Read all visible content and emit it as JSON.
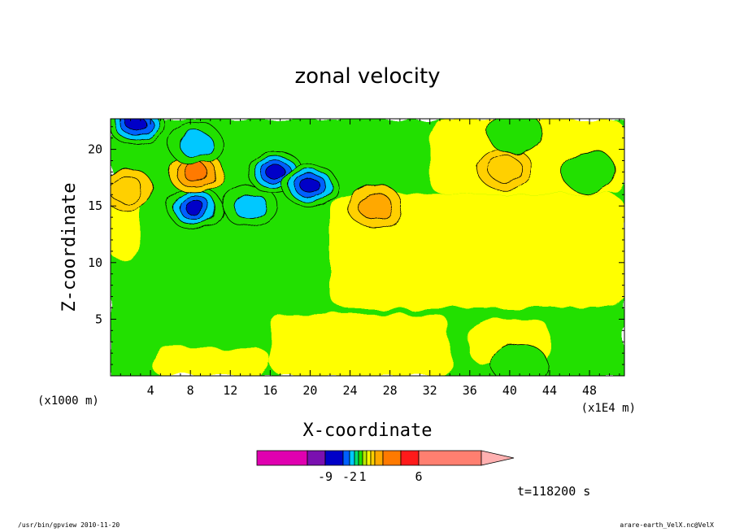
{
  "chart_data": {
    "type": "heatmap",
    "title": "zonal velocity",
    "xlabel": "X-coordinate",
    "ylabel": "Z-coordinate",
    "x_unit_left": "(x1000 m)",
    "x_unit_right": "(x1E4 m)",
    "xlim": [
      0,
      51.5
    ],
    "ylim": [
      0,
      22.7
    ],
    "x_ticks": [
      4,
      8,
      12,
      16,
      20,
      24,
      28,
      32,
      36,
      40,
      44,
      48
    ],
    "y_ticks": [
      5,
      10,
      15,
      20
    ],
    "colorbar": {
      "colors": [
        "#e000b0",
        "#7a10b0",
        "#0000c8",
        "#0060ff",
        "#00c8ff",
        "#00e070",
        "#20e000",
        "#b8e800",
        "#ffff00",
        "#ffd000",
        "#ffa800",
        "#ff7a00",
        "#ff1a1a",
        "#ff7f70",
        "#ffb0b0"
      ],
      "labels": [
        {
          "text": "-9",
          "value": -9
        },
        {
          "text": "-2",
          "value": -2
        },
        {
          "text": "1",
          "value": 1
        },
        {
          "text": "6",
          "value": 6
        }
      ]
    },
    "features": [
      {
        "x": 8.5,
        "z": 14.8,
        "value": -5
      },
      {
        "x": 14.0,
        "z": 15.0,
        "value": -3
      },
      {
        "x": 16.5,
        "z": 18.0,
        "value": -5
      },
      {
        "x": 20.0,
        "z": 16.8,
        "value": -5
      },
      {
        "x": 2.5,
        "z": 22.3,
        "value": -5
      },
      {
        "x": 8.5,
        "z": 18.0,
        "value": 4
      },
      {
        "x": 1.5,
        "z": 16.5,
        "value": 2
      },
      {
        "x": 26.5,
        "z": 15.0,
        "value": 3
      },
      {
        "x": 39.5,
        "z": 18.3,
        "value": 2
      },
      {
        "x": 41.0,
        "z": 1.0,
        "value": -1
      },
      {
        "x": 40.5,
        "z": 21.5,
        "value": -1
      },
      {
        "x": 48.0,
        "z": 18.0,
        "value": -1
      },
      {
        "x": 8.5,
        "z": 20.5,
        "value": -3
      }
    ]
  },
  "time_label": "t=118200 s",
  "footer_left": "/usr/bin/gpview   2010-11-20",
  "footer_right": "arare-earth_VelX.nc@VelX"
}
